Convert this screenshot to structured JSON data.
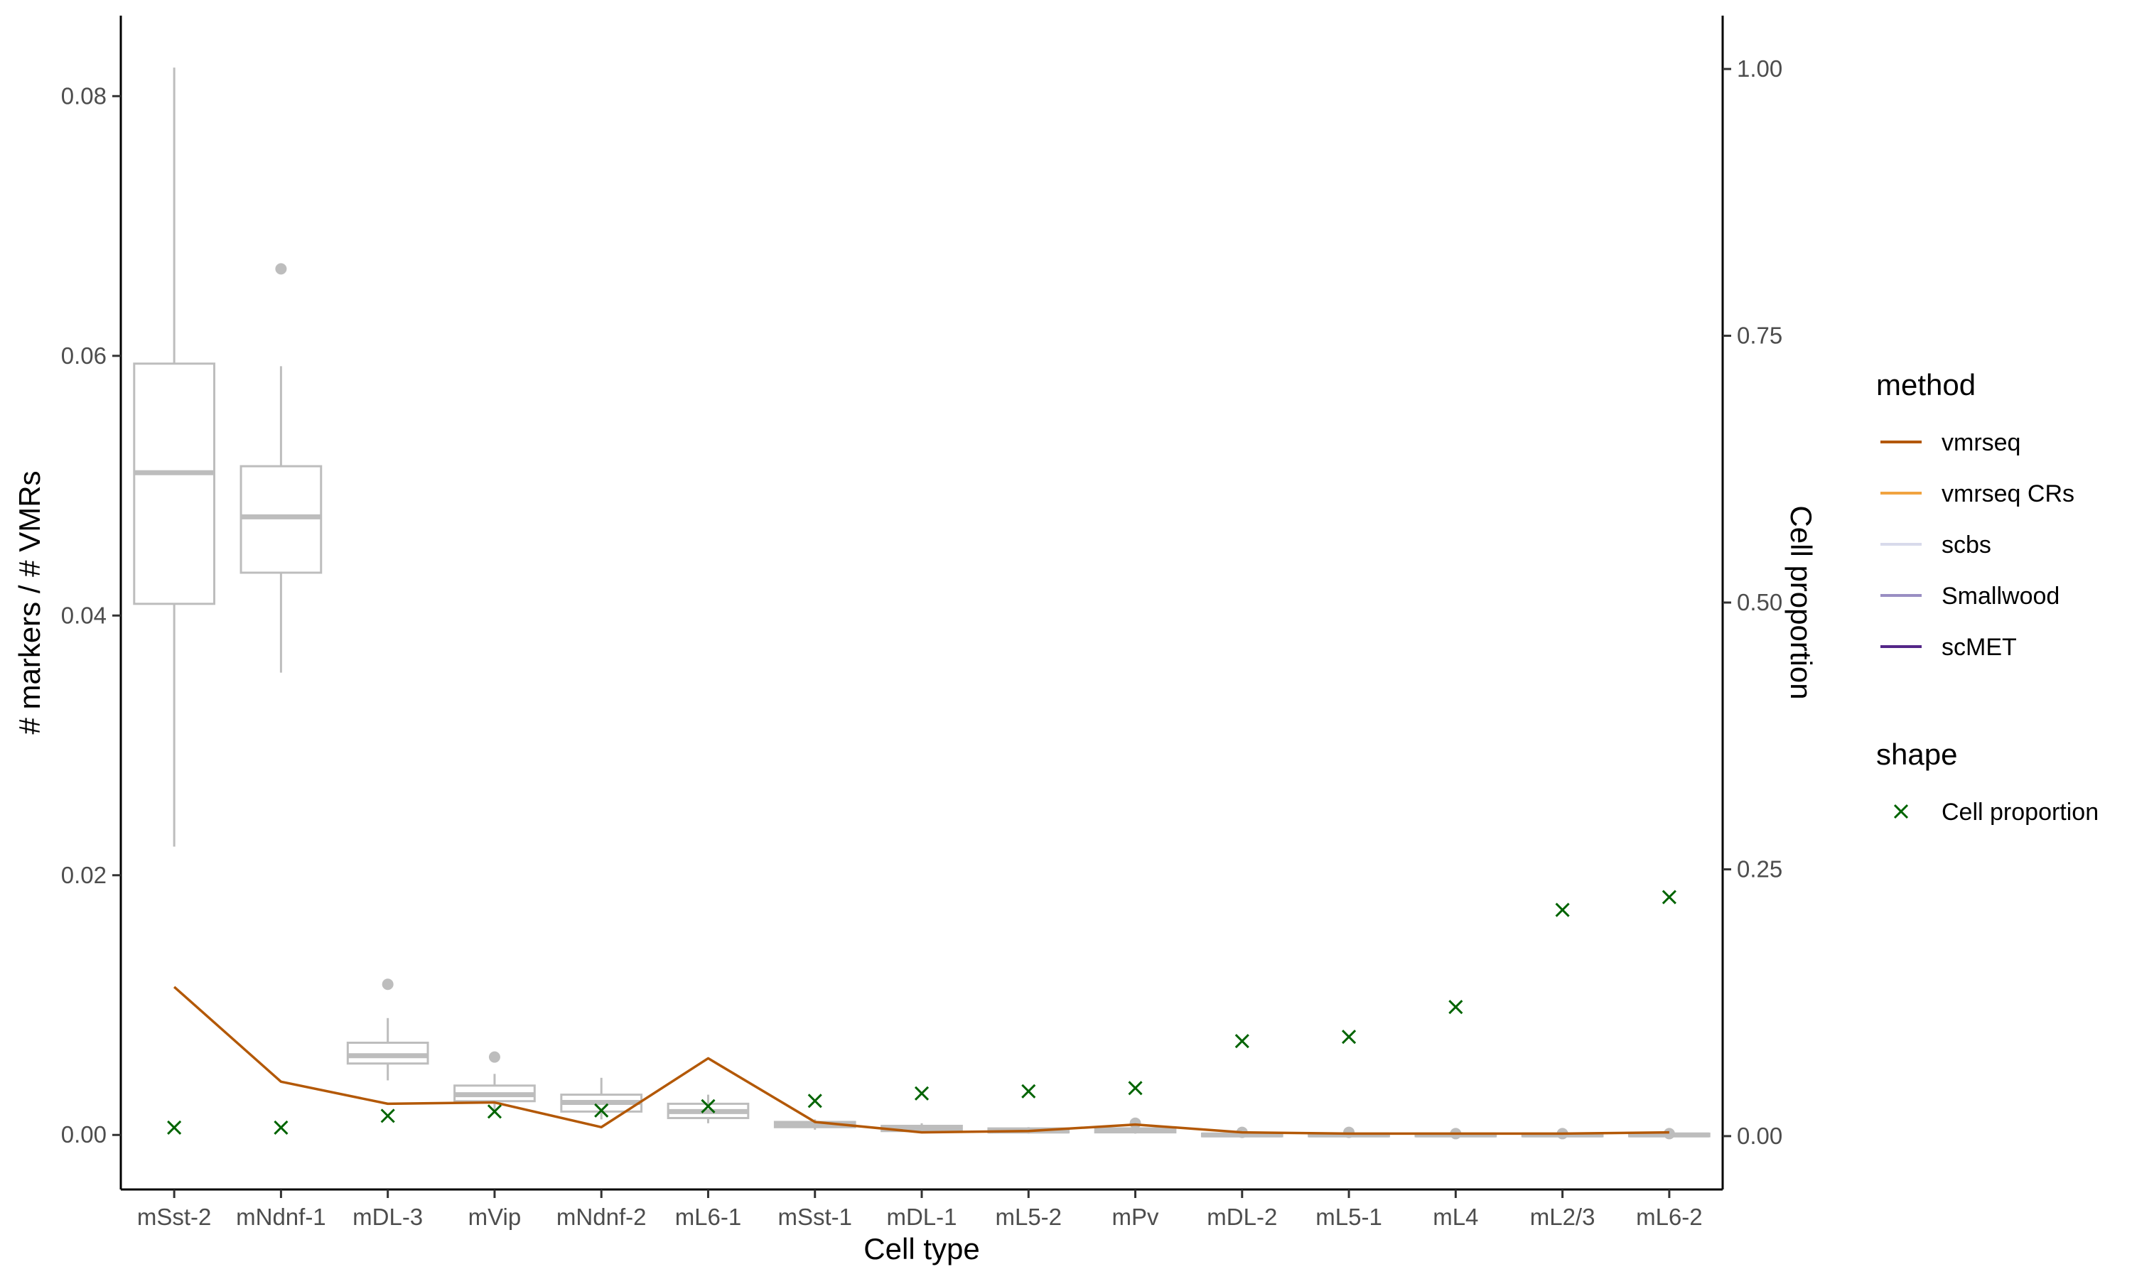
{
  "chart_data": {
    "type": "boxplot",
    "xlabel": "Cell type",
    "ylabel": "# markers / # VMRs",
    "y2label": "Cell proportion",
    "ylim": [
      -0.0042,
      0.0862
    ],
    "y2lim": [
      -0.05,
      1.05
    ],
    "yticks": [
      0.0,
      0.02,
      0.04,
      0.06,
      0.08
    ],
    "ytick_labels": [
      "0.00",
      "0.02",
      "0.04",
      "0.06",
      "0.08"
    ],
    "y2ticks": [
      0.0,
      0.25,
      0.5,
      0.75,
      1.0
    ],
    "y2tick_labels": [
      "0.00",
      "0.25",
      "0.50",
      "0.75",
      "1.00"
    ],
    "grid": false,
    "legend_position": "right",
    "categories": [
      "mSst-2",
      "mNdnf-1",
      "mDL-3",
      "mVip",
      "mNdnf-2",
      "mL6-1",
      "mSst-1",
      "mDL-1",
      "mL5-2",
      "mPv",
      "mDL-2",
      "mL5-1",
      "mL4",
      "mL2/3",
      "mL6-2"
    ],
    "boxes": [
      {
        "whisker_low": 0.0222,
        "q1": 0.0409,
        "median": 0.051,
        "q3": 0.0594,
        "whisker_high": 0.0822,
        "outliers": []
      },
      {
        "whisker_low": 0.0356,
        "q1": 0.0433,
        "median": 0.0476,
        "q3": 0.0515,
        "whisker_high": 0.0592,
        "outliers": [
          0.0667
        ]
      },
      {
        "whisker_low": 0.0042,
        "q1": 0.0055,
        "median": 0.0061,
        "q3": 0.0071,
        "whisker_high": 0.009,
        "outliers": [
          0.0116
        ]
      },
      {
        "whisker_low": 0.0017,
        "q1": 0.0026,
        "median": 0.0031,
        "q3": 0.0038,
        "whisker_high": 0.0047,
        "outliers": [
          0.006
        ]
      },
      {
        "whisker_low": 0.0012,
        "q1": 0.0018,
        "median": 0.0025,
        "q3": 0.0031,
        "whisker_high": 0.0044,
        "outliers": []
      },
      {
        "whisker_low": 0.0009,
        "q1": 0.0013,
        "median": 0.0018,
        "q3": 0.0024,
        "whisker_high": 0.0031,
        "outliers": []
      },
      {
        "whisker_low": 0.0004,
        "q1": 0.0006,
        "median": 0.0008,
        "q3": 0.001,
        "whisker_high": 0.0012,
        "outliers": []
      },
      {
        "whisker_low": 0.0002,
        "q1": 0.0003,
        "median": 0.0005,
        "q3": 0.0007,
        "whisker_high": 0.0009,
        "outliers": []
      },
      {
        "whisker_low": 0.0001,
        "q1": 0.0002,
        "median": 0.0003,
        "q3": 0.0005,
        "whisker_high": 0.0006,
        "outliers": []
      },
      {
        "whisker_low": 0.0001,
        "q1": 0.0002,
        "median": 0.0004,
        "q3": 0.0005,
        "whisker_high": 0.0006,
        "outliers": [
          0.0009
        ]
      },
      {
        "whisker_low": -0.0001,
        "q1": -0.0001,
        "median": 0.0,
        "q3": 0.0001,
        "whisker_high": 0.0002,
        "outliers": [
          0.0002
        ]
      },
      {
        "whisker_low": -0.0001,
        "q1": -0.0001,
        "median": 0.0,
        "q3": 0.0001,
        "whisker_high": 0.0002,
        "outliers": [
          0.0002
        ]
      },
      {
        "whisker_low": -0.0001,
        "q1": -0.0001,
        "median": 0.0,
        "q3": 0.0001,
        "whisker_high": 0.0001,
        "outliers": [
          0.0001
        ]
      },
      {
        "whisker_low": -0.0001,
        "q1": -0.0001,
        "median": 0.0,
        "q3": 0.0001,
        "whisker_high": 0.0001,
        "outliers": [
          0.0001
        ]
      },
      {
        "whisker_low": -0.0001,
        "q1": -0.0001,
        "median": 0.0,
        "q3": 0.0001,
        "whisker_high": 0.0001,
        "outliers": [
          0.0001
        ]
      }
    ],
    "box_color": "#bdbdbd",
    "series": [
      {
        "name": "vmrseq",
        "type": "line",
        "color": "#b35806",
        "values": [
          0.0114,
          0.0041,
          0.0024,
          0.0025,
          0.0006,
          0.0059,
          0.001,
          0.0002,
          0.0003,
          0.0008,
          0.0002,
          0.0001,
          0.0001,
          0.0001,
          0.0002
        ]
      },
      {
        "name": "Cell proportion",
        "type": "scatter",
        "axis": "right",
        "marker": "x",
        "color": "#006400",
        "values": [
          0.008,
          0.008,
          0.019,
          0.023,
          0.024,
          0.028,
          0.033,
          0.04,
          0.042,
          0.045,
          0.089,
          0.093,
          0.121,
          0.212,
          0.224
        ]
      }
    ],
    "legend": {
      "method": {
        "title": "method",
        "items": [
          {
            "label": "vmrseq",
            "color": "#b35806"
          },
          {
            "label": "vmrseq CRs",
            "color": "#f1a340"
          },
          {
            "label": "scbs",
            "color": "#d8daeb"
          },
          {
            "label": "Smallwood",
            "color": "#998ec3"
          },
          {
            "label": "scMET",
            "color": "#542788"
          }
        ]
      },
      "shape": {
        "title": "shape",
        "items": [
          {
            "label": "Cell proportion",
            "color": "#006400",
            "marker": "x"
          }
        ]
      }
    }
  }
}
